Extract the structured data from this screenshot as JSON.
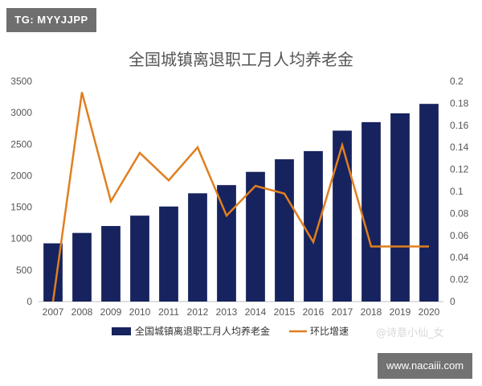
{
  "badge_top": "TG: MYYJJPP",
  "badge_bottom": "www.nacaiii.com",
  "watermark": "@诗意小仙_女",
  "chart_data": {
    "type": "bar",
    "title": "全国城镇离退职工月人均养老金",
    "categories": [
      "2007",
      "2008",
      "2009",
      "2010",
      "2011",
      "2012",
      "2013",
      "2014",
      "2015",
      "2016",
      "2017",
      "2018",
      "2019",
      "2020"
    ],
    "ylim": [
      0,
      3500
    ],
    "y2lim": [
      0,
      0.2
    ],
    "y_ticks": [
      "0",
      "500",
      "1000",
      "1500",
      "2000",
      "2500",
      "3000",
      "3500"
    ],
    "y2_ticks": [
      "0",
      "0.02",
      "0.04",
      "0.06",
      "0.08",
      "0.1",
      "0.12",
      "0.14",
      "0.16",
      "0.18",
      "0.2"
    ],
    "grid": false,
    "legend": "bottom",
    "series": [
      {
        "name": "全国城镇离退职工月人均养老金",
        "type": "bar",
        "axis": "left",
        "color": "#16235e",
        "values": [
          925,
          1090,
          1200,
          1365,
          1510,
          1720,
          1850,
          2060,
          2260,
          2390,
          2715,
          2850,
          2990,
          3140
        ]
      },
      {
        "name": "环比增速",
        "type": "line",
        "axis": "right",
        "color": "#e07f1f",
        "values": [
          0,
          0.19,
          0.091,
          0.135,
          0.11,
          0.14,
          0.078,
          0.105,
          0.098,
          0.054,
          0.142,
          0.05,
          0.05,
          0.05
        ]
      }
    ]
  }
}
